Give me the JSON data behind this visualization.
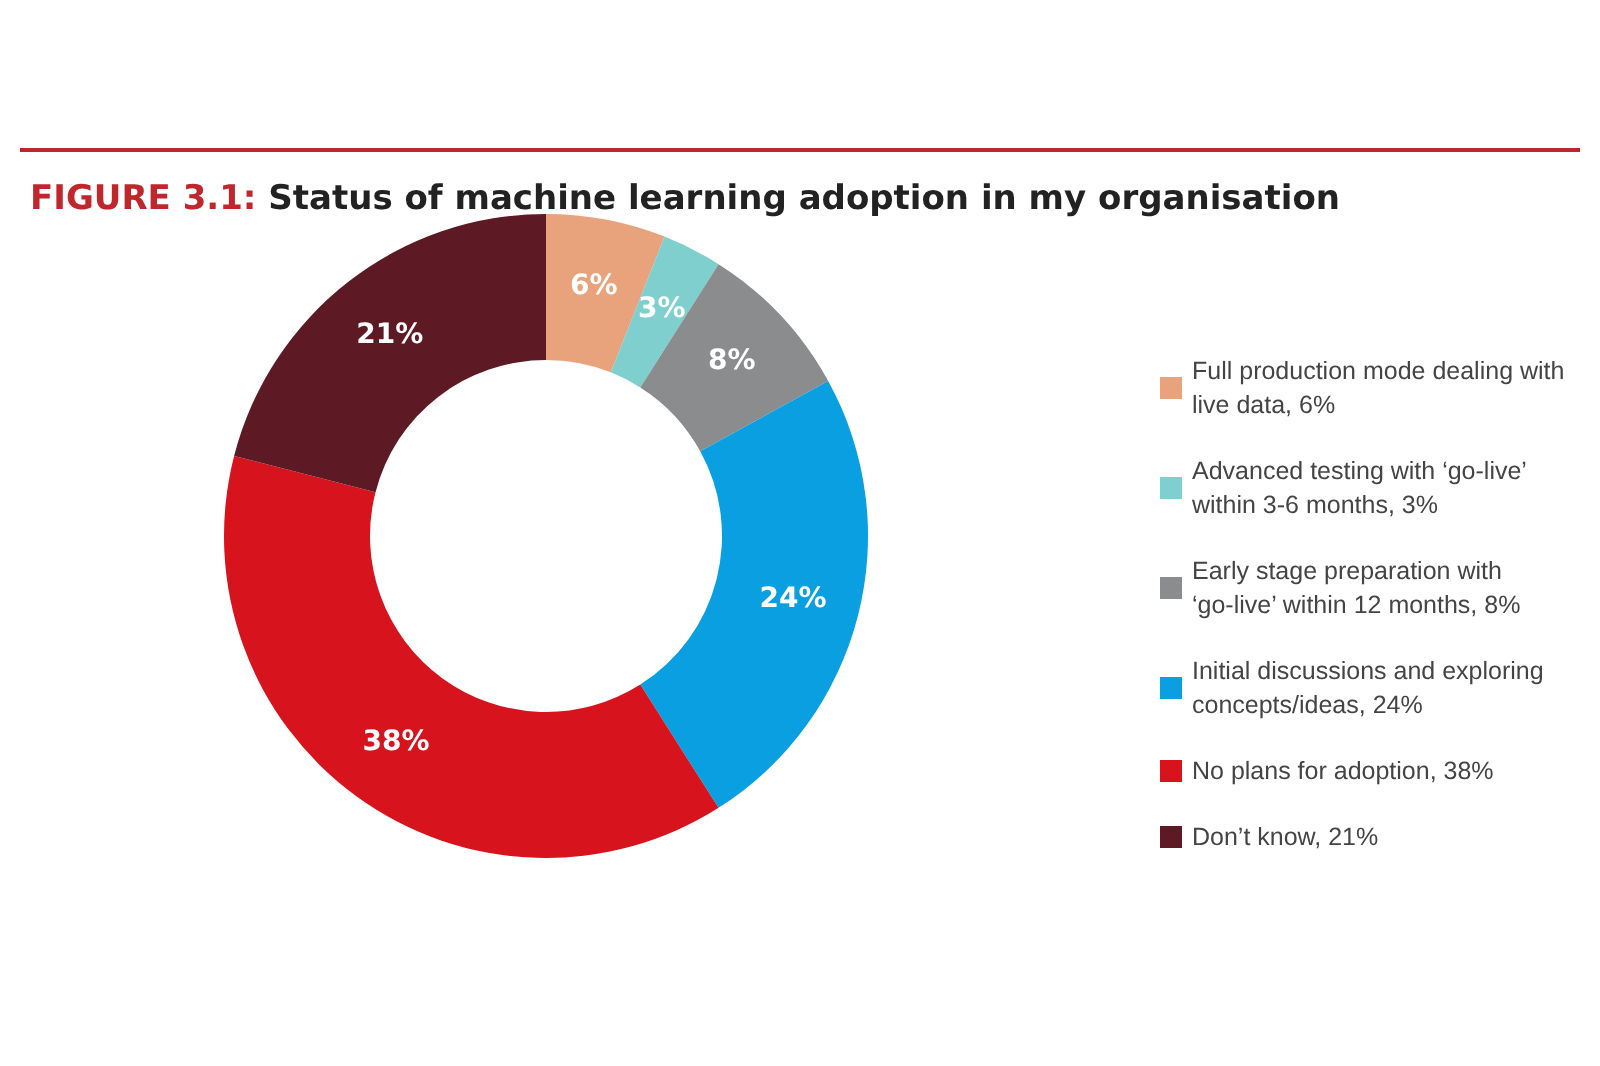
{
  "chart_data": {
    "type": "donut",
    "title": "FIGURE 3.1: Status of machine learning adoption in my organisation",
    "categories": [
      "Full production mode dealing with live data",
      "Advanced testing with ‘go-live’ within 3-6 months",
      "Early stage preparation with ‘go-live’ within 12 months",
      "Initial discussions and exploring concepts/ideas",
      "No plans for adoption",
      "Don’t know"
    ],
    "values": [
      6,
      3,
      8,
      24,
      38,
      21
    ],
    "value_labels": [
      "6%",
      "3%",
      "8%",
      "24%",
      "38%",
      "21%"
    ],
    "colors": [
      "#e8a27c",
      "#7fcfcf",
      "#8a8c8e",
      "#0a9fe0",
      "#d7141e",
      "#5e1a24"
    ],
    "legend": "right"
  }
}
